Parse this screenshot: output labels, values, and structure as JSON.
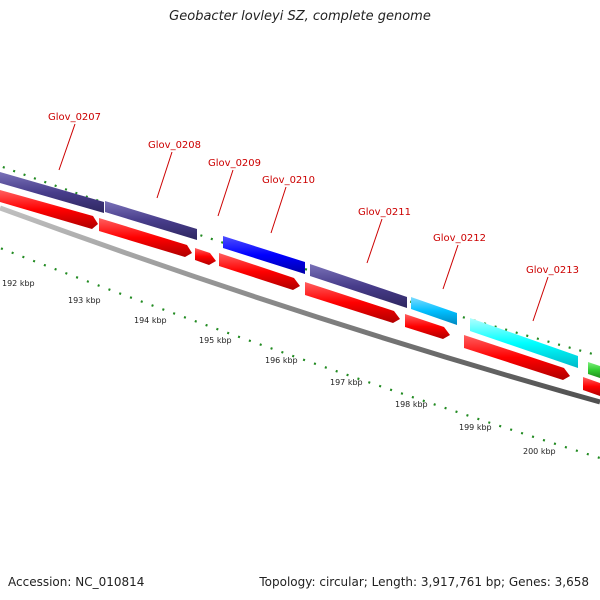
{
  "title": "Geobacter lovleyi SZ, complete genome",
  "footer": {
    "accession": "Accession: NC_010814",
    "topology": "Topology: circular; Length: 3,917,761 bp; Genes: 3,658"
  },
  "colors": {
    "gene_label": "#cc0000",
    "cds": "#ff0000",
    "backbone": "#888888",
    "tick": "#228b22",
    "slate": "#483d8b",
    "blue": "#0000ff",
    "sky": "#00bfff",
    "cyan": "#00ffff",
    "green": "#32cd32"
  },
  "scale_labels": [
    "192 kbp",
    "193 kbp",
    "194 kbp",
    "195 kbp",
    "196 kbp",
    "197 kbp",
    "198 kbp",
    "199 kbp",
    "200 kbp"
  ],
  "gene_labels": [
    "Glov_0207",
    "Glov_0208",
    "Glov_0209",
    "Glov_0210",
    "Glov_0211",
    "Glov_0212",
    "Glov_0213"
  ],
  "feature_blocks": [
    {
      "color": "slate"
    },
    {
      "color": "slate"
    },
    {
      "color": "blue"
    },
    {
      "color": "slate"
    },
    {
      "color": "sky"
    },
    {
      "color": "cyan"
    },
    {
      "color": "green"
    }
  ]
}
